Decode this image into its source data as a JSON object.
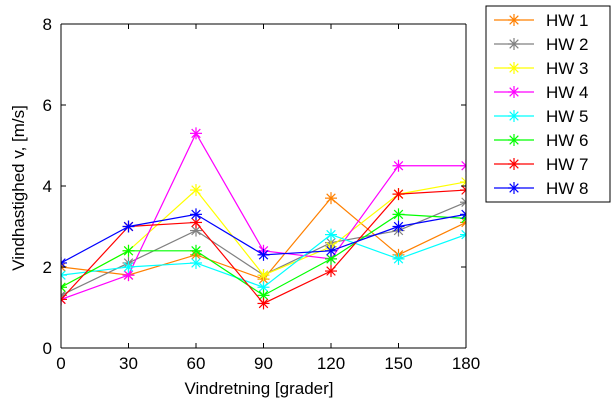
{
  "chart_data": {
    "type": "line",
    "xlabel": "Vindretning [grader]",
    "ylabel": "Vindhastighed v, [m/s]",
    "xlim": [
      0,
      180
    ],
    "ylim": [
      0,
      8
    ],
    "x_ticks": [
      0,
      30,
      60,
      90,
      120,
      150,
      180
    ],
    "x_tick_labels": [
      "0",
      "30",
      "60",
      "90",
      "120",
      "150",
      "180"
    ],
    "y_ticks": [
      0,
      2,
      4,
      6,
      8
    ],
    "y_tick_labels": [
      "0",
      "2",
      "4",
      "6",
      "8"
    ],
    "grid": false,
    "legend_position": "outside-top-right",
    "marker": "asterisk",
    "x": [
      0,
      30,
      60,
      90,
      120,
      150,
      180
    ],
    "series": [
      {
        "name": "HW 1",
        "color": "#ff8000",
        "values": [
          2.0,
          1.8,
          2.3,
          1.7,
          3.7,
          2.3,
          3.1
        ]
      },
      {
        "name": "HW 2",
        "color": "#808080",
        "values": [
          1.3,
          2.1,
          2.9,
          1.8,
          2.6,
          2.9,
          3.6
        ]
      },
      {
        "name": "HW 3",
        "color": "#ffff00",
        "values": [
          1.5,
          2.4,
          3.9,
          1.8,
          2.5,
          3.8,
          4.1
        ]
      },
      {
        "name": "HW 4",
        "color": "#ff00ff",
        "values": [
          1.2,
          1.8,
          5.3,
          2.4,
          2.2,
          4.5,
          4.5
        ]
      },
      {
        "name": "HW 5",
        "color": "#00ffff",
        "values": [
          1.8,
          2.0,
          2.1,
          1.5,
          2.8,
          2.2,
          2.8
        ]
      },
      {
        "name": "HW 6",
        "color": "#00ff00",
        "values": [
          1.5,
          2.4,
          2.4,
          1.3,
          2.2,
          3.3,
          3.2
        ]
      },
      {
        "name": "HW 7",
        "color": "#ff0000",
        "values": [
          1.2,
          3.0,
          3.1,
          1.1,
          1.9,
          3.8,
          3.9
        ]
      },
      {
        "name": "HW 8",
        "color": "#0000ff",
        "values": [
          2.1,
          3.0,
          3.3,
          2.3,
          2.4,
          3.0,
          3.3
        ]
      }
    ]
  }
}
